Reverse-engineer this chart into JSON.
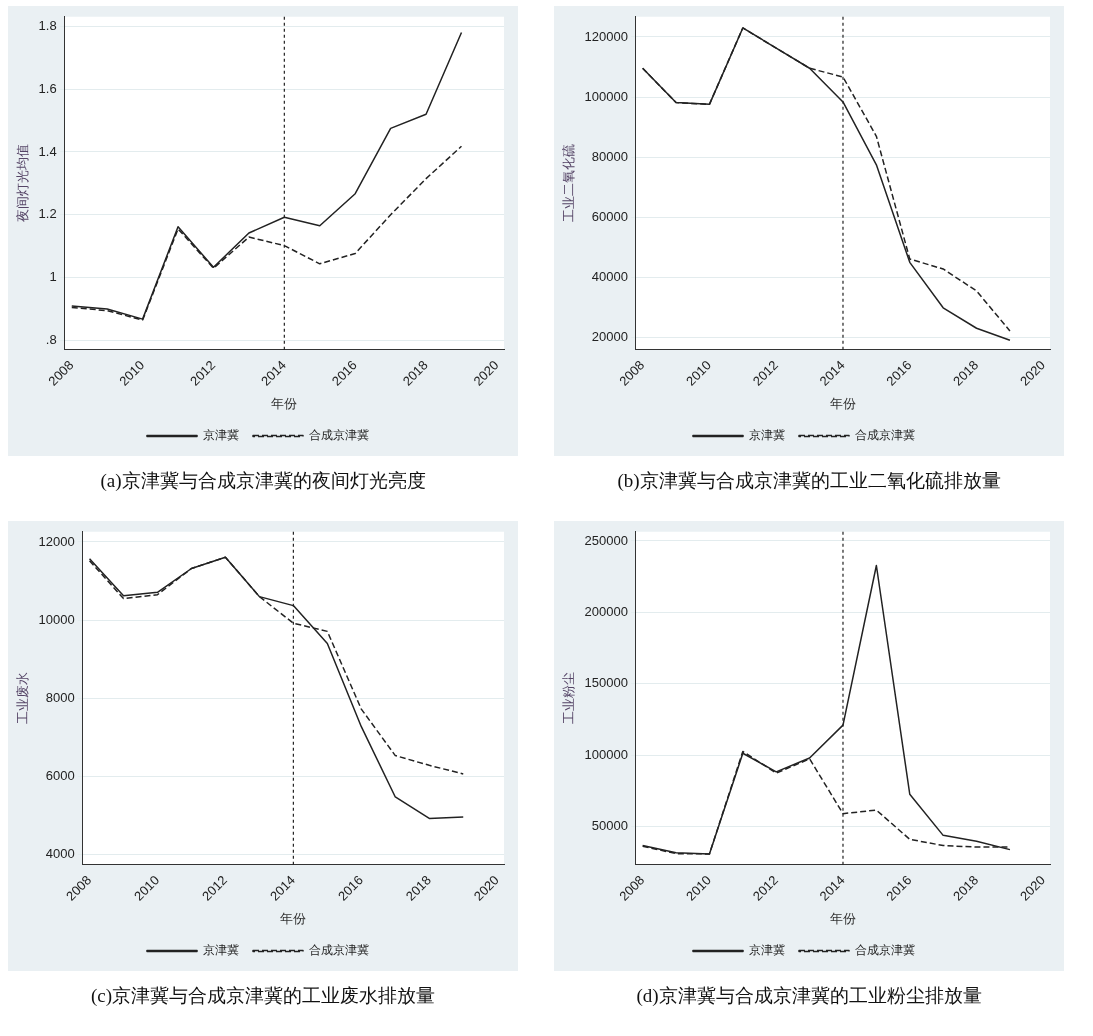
{
  "chart_data": [
    {
      "type": "line",
      "xlabel": "年份",
      "ylabel": "夜间灯光均值",
      "x": [
        2008,
        2009,
        2010,
        2011,
        2012,
        2013,
        2014,
        2015,
        2016,
        2017,
        2018,
        2019
      ],
      "series": [
        {
          "name": "京津冀",
          "color": "#222222",
          "line_style": "solid",
          "values": [
            0.91,
            0.9,
            0.868,
            1.162,
            1.033,
            1.142,
            1.192,
            1.165,
            1.267,
            1.475,
            1.52,
            1.78
          ]
        },
        {
          "name": "合成京津冀",
          "color": "#222222",
          "line_style": "dashed",
          "values": [
            0.905,
            0.895,
            0.865,
            1.155,
            1.03,
            1.129,
            1.102,
            1.044,
            1.077,
            1.2,
            1.315,
            1.418
          ]
        }
      ],
      "xlim": [
        2007.8,
        2020.2
      ],
      "xticks": [
        2008,
        2010,
        2012,
        2014,
        2016,
        2018,
        2020
      ],
      "ylim": [
        0.77,
        1.83
      ],
      "yticks": [
        {
          "value": 0.8,
          "label": ".8"
        },
        1,
        1.2,
        1.4,
        1.6,
        1.8
      ],
      "ref_lines": [
        {
          "axis": "x",
          "value": 2014,
          "color": "#222222",
          "line_style": "dotted"
        }
      ],
      "grid": "y",
      "legend": "bottom",
      "marker": "none",
      "annotations": [
        "(a)京津冀与合成京津冀的夜间灯光亮度"
      ]
    },
    {
      "type": "line",
      "xlabel": "年份",
      "ylabel": "工业二氧化硫",
      "x": [
        2008,
        2009,
        2010,
        2011,
        2012,
        2013,
        2014,
        2015,
        2016,
        2017,
        2018,
        2019
      ],
      "series": [
        {
          "name": "京津冀",
          "color": "#222222",
          "line_style": "solid",
          "values": [
            109600,
            98200,
            97600,
            123000,
            116300,
            109600,
            98400,
            77500,
            45100,
            30000,
            23200,
            19200
          ]
        },
        {
          "name": "合成京津冀",
          "color": "#222222",
          "line_style": "dashed",
          "values": [
            109600,
            98200,
            97600,
            123000,
            116300,
            109600,
            106700,
            87000,
            46200,
            42900,
            35600,
            22300
          ]
        }
      ],
      "xlim": [
        2007.8,
        2020.2
      ],
      "xticks": [
        2008,
        2010,
        2012,
        2014,
        2016,
        2018,
        2020
      ],
      "ylim": [
        16000,
        126700
      ],
      "yticks": [
        20000,
        40000,
        60000,
        80000,
        100000,
        120000
      ],
      "ref_lines": [
        {
          "axis": "x",
          "value": 2014,
          "color": "#222222",
          "line_style": "dotted"
        }
      ],
      "grid": "y",
      "legend": "bottom",
      "marker": "none",
      "annotations": [
        "(b)京津冀与合成京津冀的工业二氧化硫排放量"
      ]
    },
    {
      "type": "line",
      "xlabel": "年份",
      "ylabel": "工业废水",
      "x": [
        2008,
        2009,
        2010,
        2011,
        2012,
        2013,
        2014,
        2015,
        2016,
        2017,
        2018,
        2019
      ],
      "series": [
        {
          "name": "京津冀",
          "color": "#222222",
          "line_style": "solid",
          "values": [
            11570,
            10620,
            10710,
            11320,
            11610,
            10600,
            10370,
            9400,
            7270,
            5470,
            4920,
            4960
          ]
        },
        {
          "name": "合成京津冀",
          "color": "#222222",
          "line_style": "dashed",
          "values": [
            11520,
            10550,
            10650,
            11320,
            11610,
            10600,
            9920,
            9710,
            7720,
            6530,
            6280,
            6060
          ]
        }
      ],
      "xlim": [
        2007.8,
        2020.2
      ],
      "xticks": [
        2008,
        2010,
        2012,
        2014,
        2016,
        2018,
        2020
      ],
      "ylim": [
        3730,
        12260
      ],
      "yticks": [
        4000,
        6000,
        8000,
        10000,
        12000
      ],
      "ref_lines": [
        {
          "axis": "x",
          "value": 2014,
          "color": "#222222",
          "line_style": "dotted"
        }
      ],
      "grid": "y",
      "legend": "bottom",
      "marker": "none",
      "annotations": [
        "(c)京津冀与合成京津冀的工业废水排放量"
      ]
    },
    {
      "type": "line",
      "xlabel": "年份",
      "ylabel": "工业粉尘",
      "x": [
        2008,
        2009,
        2010,
        2011,
        2012,
        2013,
        2014,
        2015,
        2016,
        2017,
        2018,
        2019
      ],
      "series": [
        {
          "name": "京津冀",
          "color": "#222222",
          "line_style": "solid",
          "values": [
            36700,
            31600,
            30800,
            101300,
            88300,
            98000,
            121000,
            232800,
            72600,
            43800,
            39700,
            33800
          ]
        },
        {
          "name": "合成京津冀",
          "color": "#222222",
          "line_style": "dashed",
          "values": [
            36200,
            31000,
            30800,
            102600,
            87400,
            97400,
            59000,
            61500,
            41000,
            36700,
            35600,
            35600
          ]
        }
      ],
      "xlim": [
        2007.8,
        2020.2
      ],
      "xticks": [
        2008,
        2010,
        2012,
        2014,
        2016,
        2018,
        2020
      ],
      "ylim": [
        23100,
        256400
      ],
      "yticks": [
        50000,
        100000,
        150000,
        200000,
        250000
      ],
      "ref_lines": [
        {
          "axis": "x",
          "value": 2014,
          "color": "#222222",
          "line_style": "dotted"
        }
      ],
      "grid": "y",
      "legend": "bottom",
      "marker": "none",
      "annotations": [
        "(d)京津冀与合成京津冀的工业粉尘排放量"
      ]
    }
  ]
}
